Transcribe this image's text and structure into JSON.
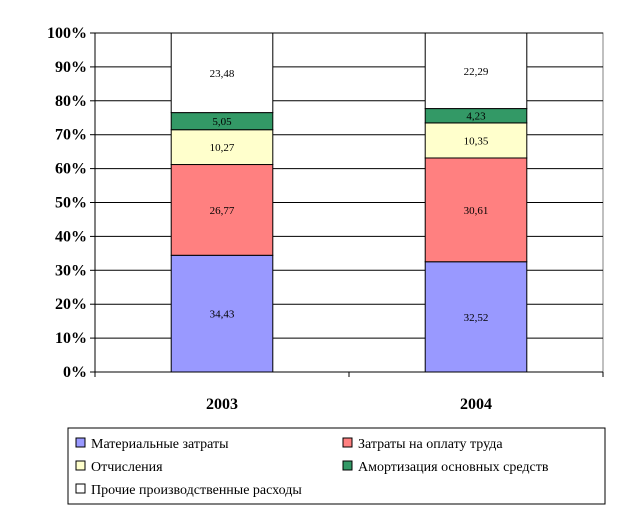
{
  "chart_data": {
    "type": "bar",
    "stacked": true,
    "percent_stacked": true,
    "categories": [
      "2003",
      "2004"
    ],
    "series": [
      {
        "name": "Материальные затраты",
        "color": "#9999ff",
        "values": [
          34.43,
          32.52
        ],
        "labels": [
          "34,43",
          "32,52"
        ]
      },
      {
        "name": "Затраты на оплату труда",
        "color": "#ff8080",
        "values": [
          26.77,
          30.61
        ],
        "labels": [
          "26,77",
          "30,61"
        ]
      },
      {
        "name": "Отчисления",
        "color": "#ffffcc",
        "values": [
          10.27,
          10.35
        ],
        "labels": [
          "10,27",
          "10,35"
        ]
      },
      {
        "name": "Амортизация основных средств",
        "color": "#339966",
        "values": [
          5.05,
          4.23
        ],
        "labels": [
          "5,05",
          "4,23"
        ]
      },
      {
        "name": "Прочие производственные расходы",
        "color": "#ffffff",
        "values": [
          23.48,
          22.29
        ],
        "labels": [
          "23,48",
          "22,29"
        ]
      }
    ],
    "yticks": [
      "0%",
      "10%",
      "20%",
      "30%",
      "40%",
      "50%",
      "60%",
      "70%",
      "80%",
      "90%",
      "100%"
    ],
    "ylim": [
      0,
      100
    ],
    "grid": true,
    "legend": "bottom"
  }
}
